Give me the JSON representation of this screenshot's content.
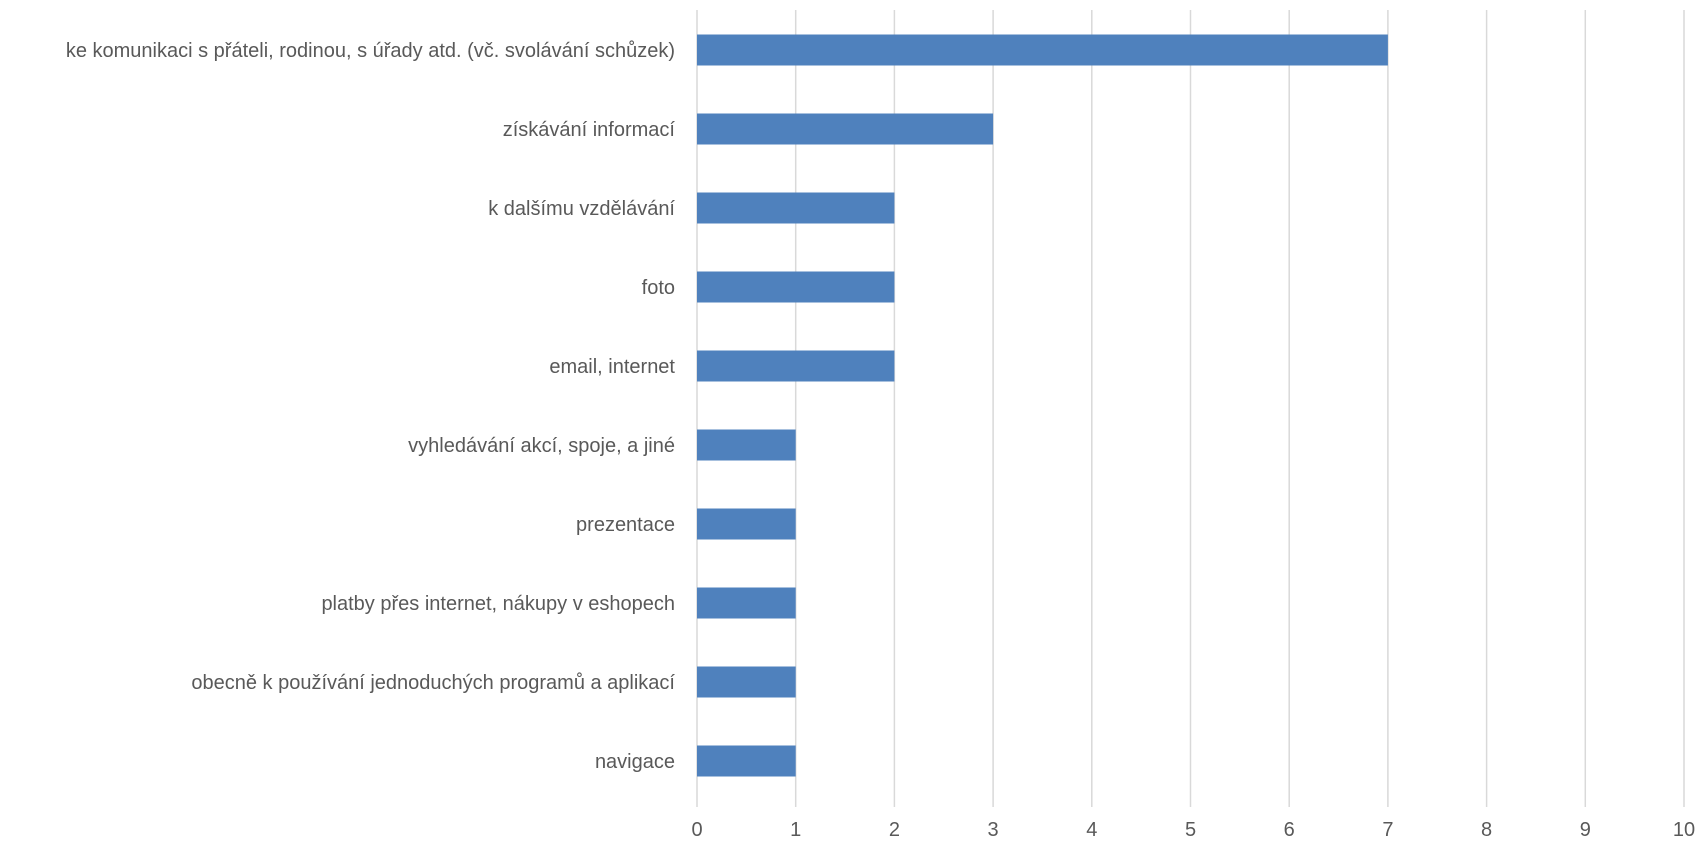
{
  "chart_data": {
    "type": "bar",
    "orientation": "horizontal",
    "categories": [
      "ke komunikaci s přáteli, rodinou, s úřady atd. (vč. svolávání schůzek)",
      "získávání informací",
      "k dalšímu vzdělávání",
      "foto",
      "email, internet",
      "vyhledávání akcí, spoje, a jiné",
      "prezentace",
      "platby přes internet, nákupy v eshopech",
      "obecně k používání jednoduchých programů a aplikací",
      "navigace"
    ],
    "values": [
      7,
      3,
      2,
      2,
      2,
      1,
      1,
      1,
      1,
      1
    ],
    "title": "",
    "xlabel": "",
    "ylabel": "",
    "xlim": [
      0,
      10
    ],
    "x_ticks": [
      "0",
      "1",
      "2",
      "3",
      "4",
      "5",
      "6",
      "7",
      "8",
      "9",
      "10"
    ],
    "grid": "vertical",
    "legend": "none",
    "bar_color": "#4F81BD",
    "grid_color": "#D9D9D9",
    "text_color": "#595959"
  }
}
